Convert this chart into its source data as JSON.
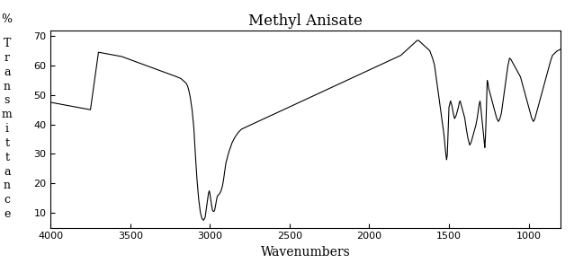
{
  "title": "Methyl Anisate",
  "xlabel": "Wavenumbers",
  "ylabel_letters": [
    "%",
    "T",
    "r",
    "a",
    "n",
    "s",
    "m",
    "i",
    "t",
    "t",
    "a",
    "n",
    "c",
    "e"
  ],
  "ylim": [
    5,
    72
  ],
  "yticks": [
    10,
    20,
    30,
    40,
    50,
    60,
    70
  ],
  "xticks": [
    4000,
    3500,
    3000,
    2500,
    2000,
    1500,
    1000
  ],
  "background": "#ffffff",
  "line_color": "#000000",
  "wavenumbers": [
    800,
    810,
    820,
    830,
    840,
    850,
    860,
    870,
    880,
    890,
    900,
    910,
    920,
    930,
    940,
    950,
    960,
    970,
    980,
    990,
    1000,
    1010,
    1020,
    1030,
    1040,
    1050,
    1060,
    1070,
    1080,
    1090,
    1100,
    1110,
    1120,
    1130,
    1140,
    1150,
    1160,
    1170,
    1180,
    1190,
    1200,
    1210,
    1220,
    1230,
    1240,
    1250,
    1255,
    1260,
    1265,
    1270,
    1275,
    1280,
    1290,
    1295,
    1300,
    1305,
    1310,
    1315,
    1320,
    1330,
    1340,
    1350,
    1360,
    1370,
    1380,
    1390,
    1400,
    1410,
    1420,
    1425,
    1430,
    1435,
    1440,
    1445,
    1450,
    1455,
    1460,
    1465,
    1470,
    1480,
    1490,
    1495,
    1500,
    1505,
    1510,
    1515,
    1520,
    1525,
    1530,
    1540,
    1550,
    1560,
    1570,
    1580,
    1590,
    1600,
    1610,
    1620,
    1630,
    1640,
    1650,
    1660,
    1670,
    1680,
    1690,
    1700,
    1710,
    1720,
    1730,
    1740,
    1750,
    1760,
    1770,
    1780,
    1790,
    1800,
    1820,
    1840,
    1860,
    1880,
    1900,
    1920,
    1940,
    1960,
    1980,
    2000,
    2020,
    2040,
    2060,
    2080,
    2100,
    2120,
    2140,
    2160,
    2180,
    2200,
    2220,
    2240,
    2260,
    2280,
    2300,
    2320,
    2340,
    2360,
    2380,
    2400,
    2420,
    2440,
    2460,
    2480,
    2500,
    2520,
    2540,
    2560,
    2580,
    2600,
    2620,
    2640,
    2660,
    2680,
    2700,
    2720,
    2740,
    2760,
    2780,
    2800,
    2820,
    2840,
    2860,
    2880,
    2900,
    2910,
    2920,
    2930,
    2940,
    2950,
    2955,
    2960,
    2965,
    2970,
    2975,
    2980,
    2985,
    2990,
    2995,
    3000,
    3005,
    3010,
    3015,
    3020,
    3025,
    3030,
    3040,
    3050,
    3060,
    3070,
    3080,
    3090,
    3100,
    3110,
    3120,
    3130,
    3140,
    3150,
    3160,
    3170,
    3180,
    3200,
    3250,
    3300,
    3350,
    3400,
    3450,
    3500,
    3550,
    3600,
    3650,
    3700,
    3750,
    3800,
    3850,
    3900,
    3950,
    4000
  ],
  "transmittance": [
    65.5,
    65.2,
    65.0,
    64.5,
    64.0,
    63.5,
    62.0,
    60.0,
    58.0,
    56.0,
    54.0,
    52.0,
    50.0,
    48.0,
    46.0,
    44.0,
    42.0,
    41.0,
    42.0,
    44.0,
    46.0,
    48.0,
    50.0,
    52.0,
    54.0,
    56.0,
    57.0,
    58.0,
    59.0,
    60.0,
    61.0,
    62.0,
    62.5,
    60.0,
    56.0,
    52.0,
    48.0,
    44.0,
    42.0,
    41.0,
    42.0,
    44.0,
    46.0,
    48.0,
    50.0,
    52.0,
    54.0,
    55.0,
    45.0,
    37.0,
    32.0,
    35.0,
    40.0,
    43.0,
    46.0,
    48.0,
    47.0,
    45.0,
    43.0,
    40.0,
    38.0,
    36.0,
    34.0,
    33.0,
    35.0,
    38.0,
    42.0,
    44.0,
    46.0,
    47.0,
    48.0,
    47.5,
    46.0,
    45.0,
    44.0,
    43.0,
    42.5,
    42.0,
    43.0,
    46.0,
    48.0,
    47.0,
    46.0,
    38.0,
    30.0,
    28.0,
    30.0,
    33.0,
    36.0,
    40.0,
    44.0,
    48.0,
    52.0,
    56.0,
    60.0,
    62.0,
    63.5,
    65.0,
    65.5,
    66.0,
    66.5,
    67.0,
    67.5,
    68.0,
    68.5,
    68.5,
    68.0,
    67.5,
    67.0,
    66.5,
    66.0,
    65.5,
    65.0,
    64.5,
    64.0,
    63.5,
    63.0,
    62.5,
    62.0,
    61.5,
    61.0,
    60.5,
    60.0,
    59.5,
    59.0,
    58.5,
    58.0,
    57.5,
    57.0,
    56.5,
    56.0,
    55.5,
    55.0,
    54.5,
    54.0,
    53.5,
    53.0,
    52.5,
    52.0,
    51.5,
    51.0,
    50.5,
    50.0,
    49.5,
    49.0,
    48.5,
    48.0,
    47.5,
    47.0,
    46.5,
    46.0,
    45.5,
    45.0,
    44.5,
    44.0,
    43.5,
    43.0,
    42.5,
    42.0,
    41.5,
    41.0,
    40.5,
    40.0,
    39.5,
    39.0,
    38.5,
    37.5,
    36.0,
    34.0,
    31.0,
    27.0,
    23.0,
    19.5,
    17.5,
    16.5,
    16.0,
    15.5,
    14.0,
    12.5,
    11.0,
    10.5,
    10.5,
    11.0,
    12.5,
    14.5,
    16.5,
    17.5,
    16.5,
    14.5,
    12.5,
    10.5,
    8.5,
    7.5,
    8.0,
    10.0,
    14.0,
    20.0,
    28.0,
    38.0,
    44.0,
    48.0,
    51.0,
    53.0,
    54.0,
    54.5,
    55.0,
    55.5,
    56.0,
    57.0,
    58.0,
    59.0,
    60.0,
    61.0,
    62.0,
    63.0,
    63.5,
    64.0,
    64.5,
    45.0,
    45.5,
    46.0,
    46.5,
    47.0,
    47.5
  ]
}
